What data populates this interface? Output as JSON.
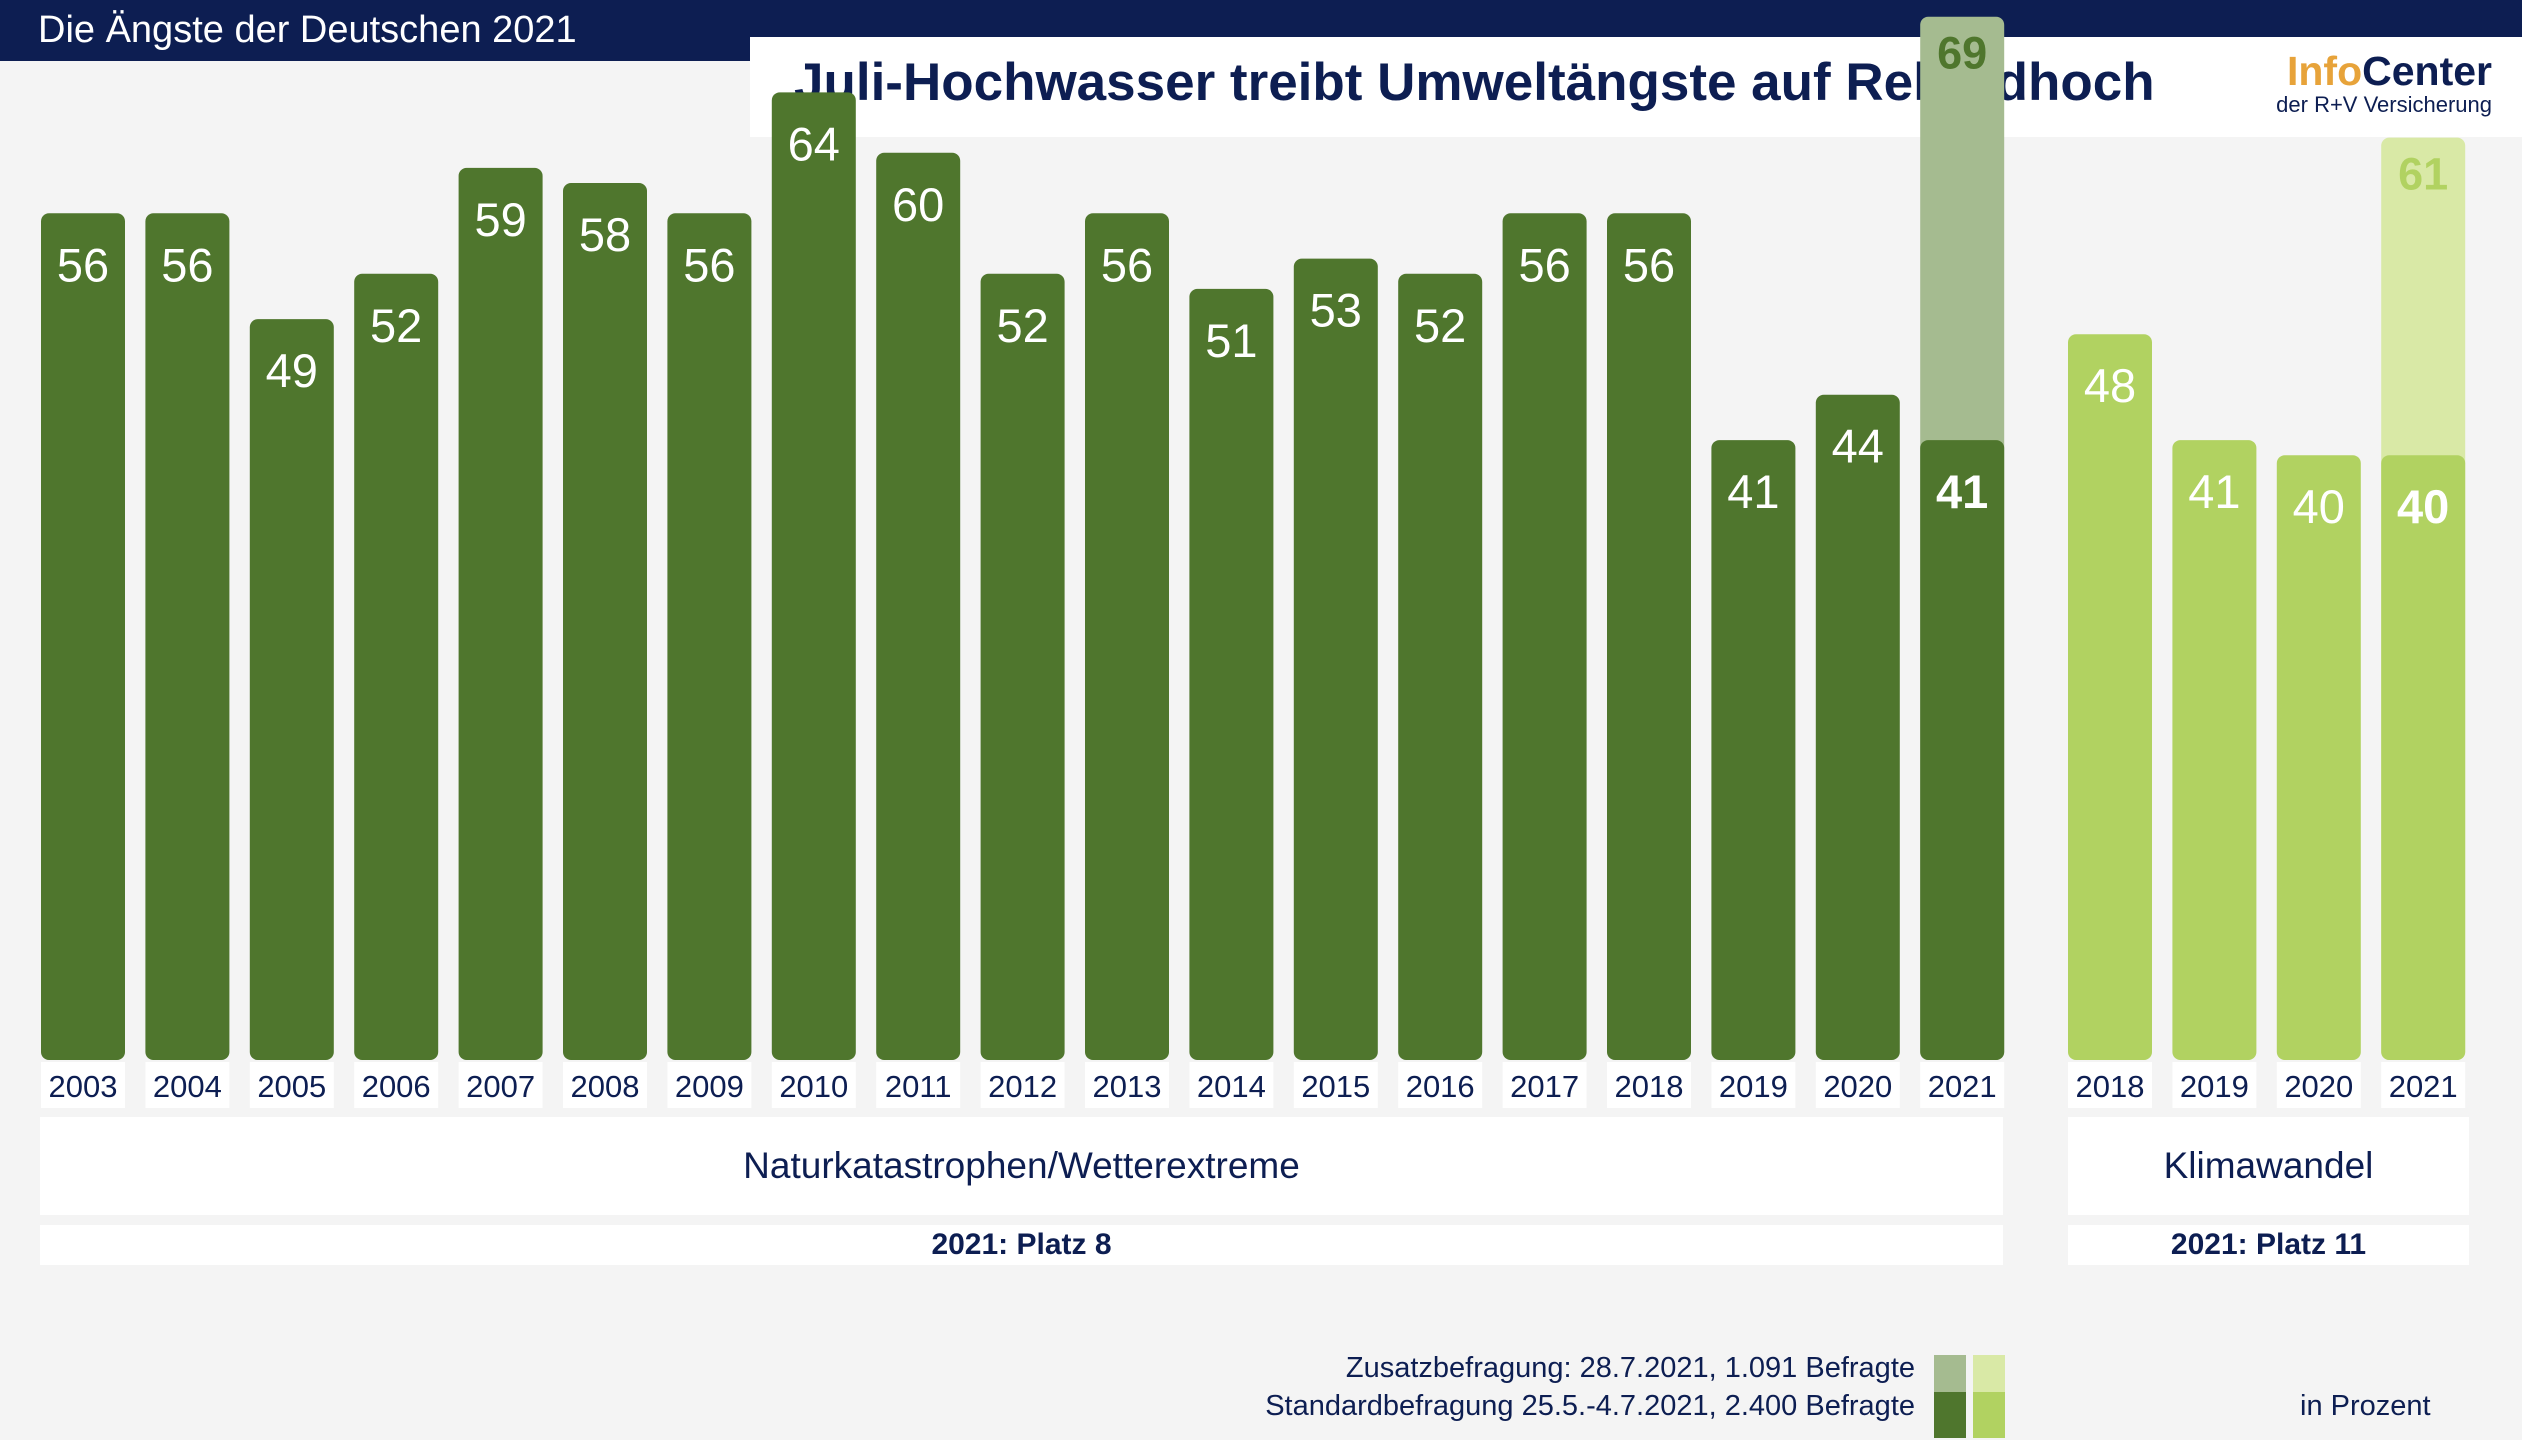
{
  "header": {
    "title_tag": "Die Ängste der Deutschen 2021",
    "title": "Juli-Hochwasser treibt Umweltängste auf Rekordhoch",
    "logo_info": "Info",
    "logo_center": "Center",
    "logo_sub": "der R+V Versicherung"
  },
  "colors": {
    "dark_green": "#4f762d",
    "dark_green_extra": "#a5bb90",
    "light_green": "#b1d261",
    "light_green_extra": "#d9e9a6",
    "navy": "#0d1e52",
    "background": "#f4f4f4"
  },
  "chart_data": [
    {
      "type": "bar",
      "group": "Naturkatastrophen/Wetterextreme",
      "rank_label": "2021: Platz 8",
      "categories": [
        "2003",
        "2004",
        "2005",
        "2006",
        "2007",
        "2008",
        "2009",
        "2010",
        "2011",
        "2012",
        "2013",
        "2014",
        "2015",
        "2016",
        "2017",
        "2018",
        "2019",
        "2020",
        "2021"
      ],
      "series": [
        {
          "name": "Standardbefragung 25.5.-4.7.2021, 2.400 Befragte",
          "values": [
            56,
            56,
            49,
            52,
            59,
            58,
            56,
            64,
            60,
            52,
            56,
            51,
            53,
            52,
            56,
            56,
            41,
            44,
            41
          ]
        },
        {
          "name": "Zusatzbefragung: 28.7.2021, 1.091 Befragte",
          "values": [
            null,
            null,
            null,
            null,
            null,
            null,
            null,
            null,
            null,
            null,
            null,
            null,
            null,
            null,
            null,
            null,
            null,
            null,
            69
          ]
        }
      ],
      "ylabel": "in Prozent",
      "ylim": [
        0,
        100
      ]
    },
    {
      "type": "bar",
      "group": "Klimawandel",
      "rank_label": "2021: Platz 11",
      "categories": [
        "2018",
        "2019",
        "2020",
        "2021"
      ],
      "series": [
        {
          "name": "Standardbefragung 25.5.-4.7.2021, 2.400 Befragte",
          "values": [
            48,
            41,
            40,
            40
          ]
        },
        {
          "name": "Zusatzbefragung: 28.7.2021, 1.091 Befragte",
          "values": [
            null,
            null,
            null,
            61
          ]
        }
      ],
      "ylabel": "in Prozent",
      "ylim": [
        0,
        100
      ]
    }
  ],
  "legend": {
    "extra_label": "Zusatzbefragung: 28.7.2021, 1.091 Befragte",
    "standard_label": "Standardbefragung 25.5.-4.7.2021, 2.400 Befragte",
    "unit": "in Prozent"
  }
}
